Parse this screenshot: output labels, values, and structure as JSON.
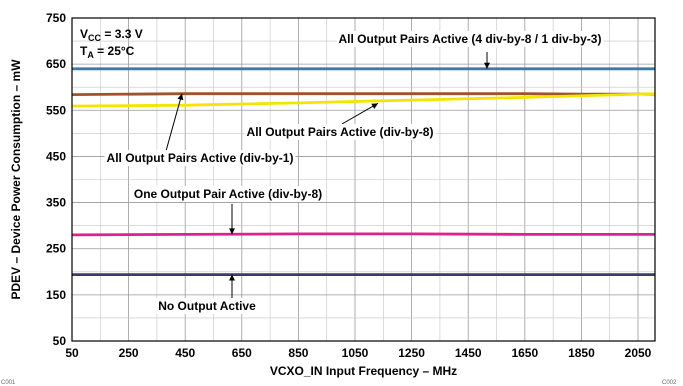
{
  "chart_data": {
    "type": "line",
    "title": "",
    "xlabel": "VCXO_IN Input Frequency – MHz",
    "ylabel": "PDEV – Device Power Consumption – mW",
    "xlim": [
      50,
      2110
    ],
    "ylim": [
      50,
      750
    ],
    "xticks": [
      50,
      250,
      450,
      650,
      850,
      1050,
      1250,
      1450,
      1650,
      1850,
      2050
    ],
    "yticks": [
      50,
      150,
      250,
      350,
      450,
      550,
      650,
      750
    ],
    "grid": true,
    "legend": "none",
    "conditions": {
      "vcc_main": "V",
      "vcc_sub": "CC",
      "vcc_rest": " = 3.3 V",
      "ta_main": "T",
      "ta_sub": "A",
      "ta_rest": " = 25°C"
    },
    "series": [
      {
        "name": "All Output Pairs Active (4 div-by-8 / 1 div-by-3)",
        "color": "#3a7ca5",
        "x": [
          50,
          450,
          850,
          1250,
          1650,
          2110
        ],
        "y": [
          640,
          640,
          640,
          640,
          640,
          640
        ]
      },
      {
        "name": "All Output Pairs Active (div-by-1)",
        "color": "#a0522d",
        "x": [
          50,
          450,
          850,
          1250,
          1650,
          1850,
          2110
        ],
        "y": [
          584,
          586,
          586,
          586,
          586,
          585,
          585
        ]
      },
      {
        "name": "All Output Pairs Active (div-by-8)",
        "color": "#f2e600",
        "x": [
          50,
          450,
          850,
          1250,
          1650,
          2110
        ],
        "y": [
          559,
          561,
          566,
          572,
          578,
          586
        ]
      },
      {
        "name": "One Output Pair Active (div-by-8)",
        "color": "#e0218a",
        "x": [
          50,
          450,
          850,
          1250,
          1650,
          2110
        ],
        "y": [
          280,
          281,
          282,
          282,
          281,
          281
        ]
      },
      {
        "name": "No Output Active",
        "color": "#3b3b6b",
        "x": [
          50,
          450,
          850,
          1250,
          1650,
          2110
        ],
        "y": [
          194,
          194,
          194,
          194,
          194,
          194
        ]
      }
    ],
    "annotations": [
      {
        "text": "All Output Pairs Active (4 div-by-8 / 1 div-by-3)",
        "series": 0
      },
      {
        "text": "All Output Pairs Active (div-by-8)",
        "series": 2
      },
      {
        "text": "All Output Pairs Active (div-by-1)",
        "series": 1
      },
      {
        "text": "One Output Pair Active (div-by-8)",
        "series": 3
      },
      {
        "text": "No Output Active",
        "series": 4
      }
    ],
    "corner_codes": {
      "left": "C001",
      "right": "C002"
    }
  }
}
